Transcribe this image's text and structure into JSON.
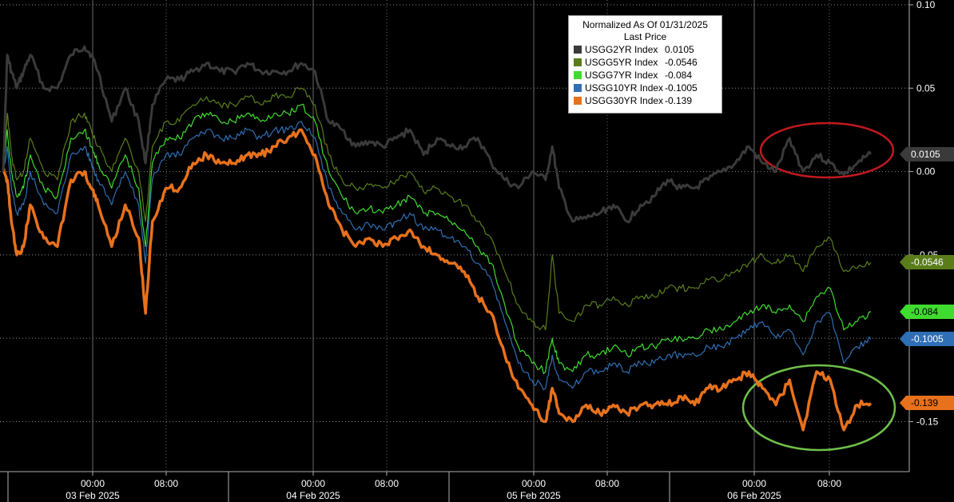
{
  "chart_data": {
    "type": "line",
    "legend": {
      "title_line1": "Normalized As Of 01/31/2025",
      "title_line2": "Last Price",
      "placement": "top-right"
    },
    "ylim": [
      -0.18,
      0.1
    ],
    "y_ticks": [
      "0.10",
      "0.05",
      "0.00",
      "-0.05",
      "-0.10",
      "-0.15"
    ],
    "y_tick_values": [
      0.1,
      0.05,
      0.0,
      -0.05,
      -0.1,
      -0.15
    ],
    "x_ticks": [
      {
        "time": "00:00",
        "date": "03 Feb 2025"
      },
      {
        "time": "08:00",
        "date": ""
      },
      {
        "time": "00:00",
        "date": "04 Feb 2025"
      },
      {
        "time": "08:00",
        "date": ""
      },
      {
        "time": "00:00",
        "date": "05 Feb 2025"
      },
      {
        "time": "08:00",
        "date": ""
      },
      {
        "time": "00:00",
        "date": "06 Feb 2025"
      },
      {
        "time": "08:00",
        "date": ""
      }
    ],
    "grid": true,
    "series": [
      {
        "name": "USGG2YR Index",
        "last": "0.0105",
        "color": "#3a3a3a",
        "x": [
          0,
          0.6,
          1.2,
          2,
          3,
          4,
          6,
          8,
          10,
          12,
          13,
          14,
          16,
          18,
          20,
          21,
          22,
          24,
          26,
          28,
          30,
          32,
          34,
          36,
          38,
          40,
          42,
          44,
          46,
          48,
          50,
          52,
          54,
          56,
          58,
          60,
          62,
          64,
          66,
          68,
          70,
          72,
          74,
          76,
          78,
          80,
          81,
          82,
          84,
          86,
          88,
          90,
          92,
          94,
          96,
          98,
          100,
          102,
          104,
          106,
          108,
          110,
          112,
          114,
          116,
          118,
          120,
          122,
          124,
          126,
          128
        ],
        "values": [
          0.0,
          0.07,
          0.06,
          0.05,
          0.06,
          0.07,
          0.05,
          0.05,
          0.07,
          0.075,
          0.07,
          0.06,
          0.03,
          0.05,
          0.03,
          0.005,
          0.04,
          0.055,
          0.055,
          0.06,
          0.065,
          0.06,
          0.06,
          0.065,
          0.06,
          0.06,
          0.06,
          0.065,
          0.06,
          0.03,
          0.025,
          0.015,
          0.018,
          0.015,
          0.02,
          0.025,
          0.01,
          0.02,
          0.015,
          0.015,
          0.02,
          0.005,
          -0.005,
          -0.01,
          0.0,
          -0.005,
          0.015,
          -0.01,
          -0.03,
          -0.028,
          -0.025,
          -0.02,
          -0.03,
          -0.02,
          -0.015,
          -0.005,
          -0.01,
          -0.01,
          -0.005,
          0.0,
          0.005,
          0.015,
          0.005,
          0.0,
          0.02,
          0.0,
          0.01,
          0.005,
          -0.002,
          0.005,
          0.0105
        ]
      },
      {
        "name": "USGG5YR Index",
        "last": "-0.0546",
        "color": "#5a7d1a",
        "x": [
          0,
          0.6,
          1.2,
          2,
          3,
          4,
          6,
          8,
          10,
          12,
          13,
          14,
          16,
          18,
          20,
          21,
          22,
          24,
          26,
          28,
          30,
          32,
          34,
          36,
          38,
          40,
          42,
          44,
          46,
          48,
          50,
          52,
          54,
          56,
          58,
          60,
          62,
          64,
          66,
          68,
          70,
          72,
          74,
          76,
          78,
          80,
          81,
          82,
          84,
          86,
          88,
          90,
          92,
          94,
          96,
          98,
          100,
          102,
          104,
          106,
          108,
          110,
          112,
          114,
          116,
          118,
          120,
          122,
          124,
          126,
          128
        ],
        "values": [
          0.0,
          0.035,
          0.01,
          -0.005,
          0.0,
          0.02,
          0.0,
          -0.005,
          0.03,
          0.035,
          0.025,
          0.015,
          0.0,
          0.02,
          0.0,
          -0.03,
          0.015,
          0.03,
          0.03,
          0.04,
          0.045,
          0.04,
          0.04,
          0.045,
          0.04,
          0.045,
          0.045,
          0.05,
          0.04,
          0.01,
          -0.005,
          -0.01,
          -0.008,
          -0.01,
          -0.005,
          0.0,
          -0.012,
          -0.01,
          -0.015,
          -0.02,
          -0.03,
          -0.04,
          -0.06,
          -0.08,
          -0.09,
          -0.095,
          -0.05,
          -0.085,
          -0.09,
          -0.08,
          -0.08,
          -0.075,
          -0.08,
          -0.075,
          -0.075,
          -0.07,
          -0.07,
          -0.07,
          -0.065,
          -0.065,
          -0.06,
          -0.055,
          -0.05,
          -0.055,
          -0.05,
          -0.06,
          -0.045,
          -0.04,
          -0.06,
          -0.058,
          -0.0546
        ]
      },
      {
        "name": "USGG7YR Index",
        "last": "-0.084",
        "color": "#3fdc2f",
        "x": [
          0,
          0.6,
          1.2,
          2,
          3,
          4,
          6,
          8,
          10,
          12,
          13,
          14,
          16,
          18,
          20,
          21,
          22,
          24,
          26,
          28,
          30,
          32,
          34,
          36,
          38,
          40,
          42,
          44,
          46,
          48,
          50,
          52,
          54,
          56,
          58,
          60,
          62,
          64,
          66,
          68,
          70,
          72,
          74,
          76,
          78,
          80,
          81,
          82,
          84,
          86,
          88,
          90,
          92,
          94,
          96,
          98,
          100,
          102,
          104,
          106,
          108,
          110,
          112,
          114,
          116,
          118,
          120,
          122,
          124,
          126,
          128
        ],
        "values": [
          0.0,
          0.025,
          0.0,
          -0.015,
          -0.01,
          0.01,
          -0.01,
          -0.015,
          0.02,
          0.025,
          0.015,
          0.005,
          -0.01,
          0.01,
          -0.01,
          -0.045,
          0.005,
          0.02,
          0.02,
          0.03,
          0.035,
          0.03,
          0.03,
          0.035,
          0.03,
          0.035,
          0.035,
          0.04,
          0.03,
          0.0,
          -0.015,
          -0.025,
          -0.022,
          -0.025,
          -0.02,
          -0.015,
          -0.025,
          -0.025,
          -0.03,
          -0.035,
          -0.045,
          -0.055,
          -0.08,
          -0.105,
          -0.115,
          -0.12,
          -0.1,
          -0.115,
          -0.12,
          -0.11,
          -0.11,
          -0.105,
          -0.11,
          -0.105,
          -0.105,
          -0.1,
          -0.1,
          -0.1,
          -0.095,
          -0.095,
          -0.09,
          -0.085,
          -0.08,
          -0.085,
          -0.08,
          -0.09,
          -0.075,
          -0.07,
          -0.095,
          -0.09,
          -0.084
        ]
      },
      {
        "name": "USGG10YR Index",
        "last": "-0.1005",
        "color": "#2f6fb5",
        "x": [
          0,
          0.6,
          1.2,
          2,
          3,
          4,
          6,
          8,
          10,
          12,
          13,
          14,
          16,
          18,
          20,
          21,
          22,
          24,
          26,
          28,
          30,
          32,
          34,
          36,
          38,
          40,
          42,
          44,
          46,
          48,
          50,
          52,
          54,
          56,
          58,
          60,
          62,
          64,
          66,
          68,
          70,
          72,
          74,
          76,
          78,
          80,
          81,
          82,
          84,
          86,
          88,
          90,
          92,
          94,
          96,
          98,
          100,
          102,
          104,
          106,
          108,
          110,
          112,
          114,
          116,
          118,
          120,
          122,
          124,
          126,
          128
        ],
        "values": [
          0.0,
          0.015,
          -0.01,
          -0.025,
          -0.02,
          0.0,
          -0.02,
          -0.025,
          0.01,
          0.015,
          0.005,
          -0.005,
          -0.02,
          0.0,
          -0.02,
          -0.055,
          -0.005,
          0.01,
          0.01,
          0.02,
          0.025,
          0.02,
          0.02,
          0.025,
          0.02,
          0.025,
          0.025,
          0.03,
          0.02,
          -0.01,
          -0.025,
          -0.035,
          -0.032,
          -0.035,
          -0.03,
          -0.025,
          -0.035,
          -0.035,
          -0.04,
          -0.045,
          -0.055,
          -0.065,
          -0.09,
          -0.115,
          -0.125,
          -0.13,
          -0.11,
          -0.125,
          -0.13,
          -0.12,
          -0.12,
          -0.115,
          -0.12,
          -0.115,
          -0.115,
          -0.11,
          -0.11,
          -0.11,
          -0.105,
          -0.105,
          -0.1,
          -0.095,
          -0.09,
          -0.1,
          -0.095,
          -0.11,
          -0.09,
          -0.085,
          -0.115,
          -0.105,
          -0.1005
        ]
      },
      {
        "name": "USGG30YR Index",
        "last": "-0.139",
        "color": "#e8711c",
        "x": [
          0,
          0.6,
          1.2,
          2,
          3,
          4,
          6,
          8,
          10,
          12,
          13,
          14,
          16,
          18,
          20,
          21,
          22,
          24,
          26,
          28,
          30,
          32,
          34,
          36,
          38,
          40,
          42,
          44,
          46,
          48,
          50,
          52,
          54,
          56,
          58,
          60,
          62,
          64,
          66,
          68,
          70,
          72,
          74,
          76,
          78,
          80,
          81,
          82,
          84,
          86,
          88,
          90,
          92,
          94,
          96,
          98,
          100,
          102,
          104,
          106,
          108,
          110,
          112,
          114,
          116,
          118,
          120,
          122,
          124,
          126,
          128
        ],
        "values": [
          0.0,
          -0.005,
          -0.03,
          -0.05,
          -0.045,
          -0.02,
          -0.04,
          -0.045,
          -0.005,
          0.0,
          -0.01,
          -0.02,
          -0.045,
          -0.02,
          -0.04,
          -0.085,
          -0.03,
          -0.01,
          -0.01,
          0.005,
          0.01,
          0.005,
          0.005,
          0.01,
          0.01,
          0.015,
          0.02,
          0.025,
          0.01,
          -0.02,
          -0.035,
          -0.045,
          -0.04,
          -0.045,
          -0.04,
          -0.035,
          -0.045,
          -0.05,
          -0.055,
          -0.06,
          -0.075,
          -0.085,
          -0.11,
          -0.13,
          -0.14,
          -0.15,
          -0.13,
          -0.145,
          -0.15,
          -0.14,
          -0.145,
          -0.14,
          -0.145,
          -0.14,
          -0.14,
          -0.14,
          -0.135,
          -0.14,
          -0.13,
          -0.13,
          -0.125,
          -0.12,
          -0.13,
          -0.14,
          -0.125,
          -0.155,
          -0.12,
          -0.125,
          -0.155,
          -0.14,
          -0.139
        ]
      }
    ]
  }
}
